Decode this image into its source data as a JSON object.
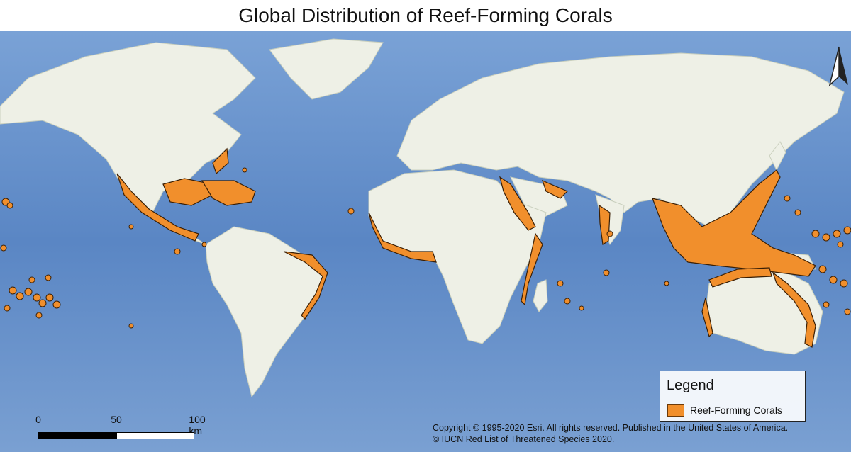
{
  "map": {
    "title": "Global Distribution of Reef-Forming Corals",
    "basemap": "ocean-relief-basemap",
    "colors": {
      "ocean": "#5a86c4",
      "ocean_shallow": "#8fb0d8",
      "land": "#eef0e6",
      "land_green": "#d3dfc4",
      "coral_fill": "#f18f2c",
      "coral_outline": "#3a1f05"
    }
  },
  "legend": {
    "title": "Legend",
    "items": [
      {
        "label": "Reef-Forming Corals",
        "color": "#f18f2c"
      }
    ]
  },
  "scale_bar": {
    "tick_labels": [
      "0",
      "50",
      "100 km"
    ],
    "segment_colors": [
      "#000000",
      "#ffffff"
    ]
  },
  "north_arrow": {
    "icon": "north-arrow-icon"
  },
  "attribution": {
    "lines": [
      "Copyright © 1995-2020 Esri. All rights reserved. Published in the United States of America.",
      "© IUCN Red List of Threatened Species 2020."
    ]
  }
}
